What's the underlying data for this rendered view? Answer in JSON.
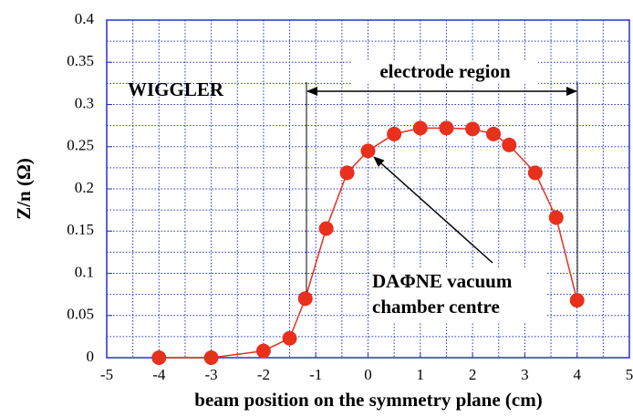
{
  "chart_data": {
    "type": "line",
    "xlabel": "beam position on the symmetry plane (cm)",
    "ylabel": "Z/n (Ω)",
    "x": [
      -4,
      -3,
      -2,
      -1.5,
      -1.2,
      -0.8,
      -0.4,
      0,
      0.5,
      1,
      1.5,
      2,
      2.4,
      2.7,
      3.2,
      3.6,
      4
    ],
    "series": [
      {
        "name": "WIGGLER",
        "color": "#e8301c",
        "values": [
          0,
          0,
          0.008,
          0.023,
          0.07,
          0.153,
          0.219,
          0.245,
          0.265,
          0.272,
          0.272,
          0.271,
          0.265,
          0.252,
          0.219,
          0.166,
          0.068
        ]
      }
    ],
    "xlim": [
      -5,
      5
    ],
    "xticks": [
      -5,
      -4,
      -3,
      -2,
      -1,
      0,
      1,
      2,
      3,
      4,
      5
    ],
    "ylim": [
      0,
      0.4
    ],
    "yticks": [
      0,
      0.05,
      0.1,
      0.15,
      0.2,
      0.25,
      0.3,
      0.35,
      0.4
    ],
    "minor_xticks": [
      -4.5,
      -3.5,
      -2.5,
      -1.5,
      -0.5,
      0.5,
      1.5,
      2.5,
      3.5,
      4.5
    ],
    "minor_yticks": [
      0.025,
      0.075,
      0.125,
      0.175,
      0.225,
      0.275,
      0.325,
      0.375
    ],
    "grid": true,
    "grid_color": "#2233cc",
    "annotations": [
      "electrode region",
      "DAΦNE vacuum",
      "chamber centre"
    ]
  }
}
